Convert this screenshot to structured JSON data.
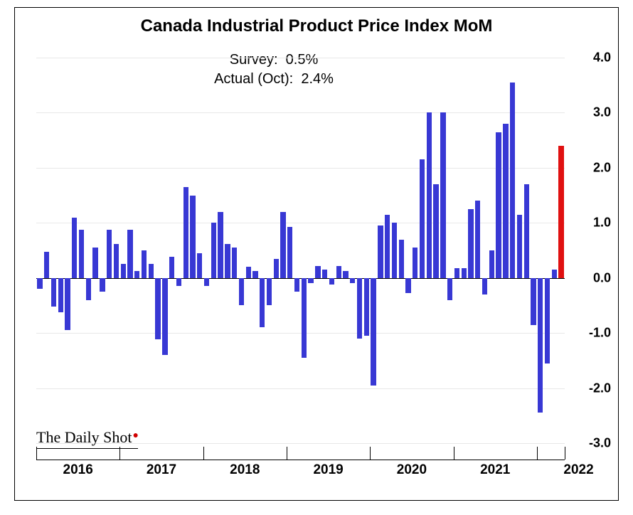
{
  "chart": {
    "type": "bar",
    "title": "Canada Industrial Product Price Index MoM",
    "title_fontsize": 24,
    "subtitle": {
      "survey_label": "Survey:",
      "survey_value": "0.5%",
      "actual_label": "Actual (Oct):",
      "actual_value": "2.4%",
      "fontsize": 20
    },
    "background_color": "#ffffff",
    "grid_color": "#e8e8e8",
    "axis_color": "#000000",
    "ylim": [
      -3.0,
      4.0
    ],
    "ytick_step": 1.0,
    "yticks": [
      "4.0",
      "3.0",
      "2.0",
      "1.0",
      "0.0",
      "-1.0",
      "-2.0",
      "-3.0"
    ],
    "ytick_fontsize": 18,
    "x_years": [
      "2016",
      "2017",
      "2018",
      "2019",
      "2020",
      "2021",
      "2022"
    ],
    "x_label_fontsize": 19,
    "bar_default_color": "#3838d4",
    "bar_highlight_color": "#e01010",
    "bar_gap_ratio": 0.25,
    "data": [
      {
        "v": -0.2
      },
      {
        "v": 0.48
      },
      {
        "v": -0.52
      },
      {
        "v": -0.62
      },
      {
        "v": -0.95
      },
      {
        "v": 1.1
      },
      {
        "v": 0.88
      },
      {
        "v": -0.4
      },
      {
        "v": 0.55
      },
      {
        "v": -0.25
      },
      {
        "v": 0.88
      },
      {
        "v": 0.62
      },
      {
        "v": 0.25
      },
      {
        "v": 0.88
      },
      {
        "v": 0.12
      },
      {
        "v": 0.5
      },
      {
        "v": 0.25
      },
      {
        "v": -1.12
      },
      {
        "v": -1.4
      },
      {
        "v": 0.38
      },
      {
        "v": -0.15
      },
      {
        "v": 1.65
      },
      {
        "v": 1.5
      },
      {
        "v": 0.45
      },
      {
        "v": -0.15
      },
      {
        "v": 1.0
      },
      {
        "v": 1.2
      },
      {
        "v": 0.62
      },
      {
        "v": 0.55
      },
      {
        "v": -0.5
      },
      {
        "v": 0.2
      },
      {
        "v": 0.12
      },
      {
        "v": -0.9
      },
      {
        "v": -0.5
      },
      {
        "v": 0.35
      },
      {
        "v": 1.2
      },
      {
        "v": 0.92
      },
      {
        "v": -0.25
      },
      {
        "v": -1.45
      },
      {
        "v": -0.1
      },
      {
        "v": 0.22
      },
      {
        "v": 0.15
      },
      {
        "v": -0.12
      },
      {
        "v": 0.22
      },
      {
        "v": 0.12
      },
      {
        "v": -0.1
      },
      {
        "v": -1.1
      },
      {
        "v": -1.05
      },
      {
        "v": -1.95
      },
      {
        "v": 0.95
      },
      {
        "v": 1.15
      },
      {
        "v": 1.0
      },
      {
        "v": 0.7
      },
      {
        "v": -0.28
      },
      {
        "v": 0.55
      },
      {
        "v": 2.15
      },
      {
        "v": 3.0
      },
      {
        "v": 1.7
      },
      {
        "v": 3.0
      },
      {
        "v": -0.4
      },
      {
        "v": 0.18
      },
      {
        "v": 0.18
      },
      {
        "v": 1.25
      },
      {
        "v": 1.4
      },
      {
        "v": -0.3
      },
      {
        "v": 0.5
      },
      {
        "v": 2.65
      },
      {
        "v": 2.8
      },
      {
        "v": 3.55
      },
      {
        "v": 1.15
      },
      {
        "v": 1.7
      },
      {
        "v": -0.85
      },
      {
        "v": -2.45
      },
      {
        "v": -1.55
      },
      {
        "v": 0.15
      },
      {
        "v": 2.4,
        "highlight": true
      }
    ],
    "attribution": "The Daily Shot",
    "attribution_fontsize": 22
  }
}
